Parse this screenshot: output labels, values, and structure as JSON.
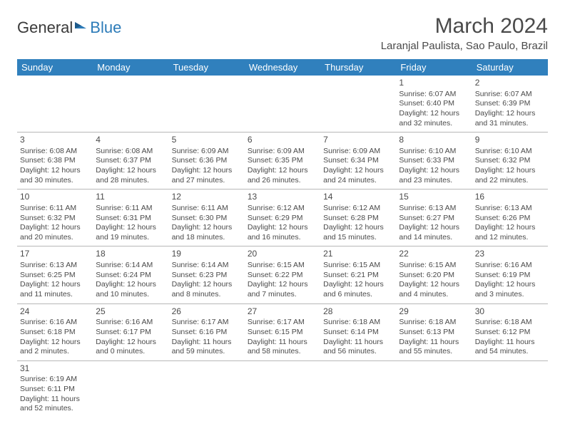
{
  "logo": {
    "text1": "General",
    "text2": "Blue"
  },
  "header": {
    "month_title": "March 2024",
    "location": "Laranjal Paulista, Sao Paulo, Brazil"
  },
  "colors": {
    "header_bg": "#3080bd",
    "header_text": "#ffffff",
    "body_text": "#4a4a4a",
    "border": "#b8b8b8"
  },
  "day_headers": [
    "Sunday",
    "Monday",
    "Tuesday",
    "Wednesday",
    "Thursday",
    "Friday",
    "Saturday"
  ],
  "weeks": [
    [
      null,
      null,
      null,
      null,
      null,
      {
        "d": "1",
        "sr": "Sunrise: 6:07 AM",
        "ss": "Sunset: 6:40 PM",
        "dl1": "Daylight: 12 hours",
        "dl2": "and 32 minutes."
      },
      {
        "d": "2",
        "sr": "Sunrise: 6:07 AM",
        "ss": "Sunset: 6:39 PM",
        "dl1": "Daylight: 12 hours",
        "dl2": "and 31 minutes."
      }
    ],
    [
      {
        "d": "3",
        "sr": "Sunrise: 6:08 AM",
        "ss": "Sunset: 6:38 PM",
        "dl1": "Daylight: 12 hours",
        "dl2": "and 30 minutes."
      },
      {
        "d": "4",
        "sr": "Sunrise: 6:08 AM",
        "ss": "Sunset: 6:37 PM",
        "dl1": "Daylight: 12 hours",
        "dl2": "and 28 minutes."
      },
      {
        "d": "5",
        "sr": "Sunrise: 6:09 AM",
        "ss": "Sunset: 6:36 PM",
        "dl1": "Daylight: 12 hours",
        "dl2": "and 27 minutes."
      },
      {
        "d": "6",
        "sr": "Sunrise: 6:09 AM",
        "ss": "Sunset: 6:35 PM",
        "dl1": "Daylight: 12 hours",
        "dl2": "and 26 minutes."
      },
      {
        "d": "7",
        "sr": "Sunrise: 6:09 AM",
        "ss": "Sunset: 6:34 PM",
        "dl1": "Daylight: 12 hours",
        "dl2": "and 24 minutes."
      },
      {
        "d": "8",
        "sr": "Sunrise: 6:10 AM",
        "ss": "Sunset: 6:33 PM",
        "dl1": "Daylight: 12 hours",
        "dl2": "and 23 minutes."
      },
      {
        "d": "9",
        "sr": "Sunrise: 6:10 AM",
        "ss": "Sunset: 6:32 PM",
        "dl1": "Daylight: 12 hours",
        "dl2": "and 22 minutes."
      }
    ],
    [
      {
        "d": "10",
        "sr": "Sunrise: 6:11 AM",
        "ss": "Sunset: 6:32 PM",
        "dl1": "Daylight: 12 hours",
        "dl2": "and 20 minutes."
      },
      {
        "d": "11",
        "sr": "Sunrise: 6:11 AM",
        "ss": "Sunset: 6:31 PM",
        "dl1": "Daylight: 12 hours",
        "dl2": "and 19 minutes."
      },
      {
        "d": "12",
        "sr": "Sunrise: 6:11 AM",
        "ss": "Sunset: 6:30 PM",
        "dl1": "Daylight: 12 hours",
        "dl2": "and 18 minutes."
      },
      {
        "d": "13",
        "sr": "Sunrise: 6:12 AM",
        "ss": "Sunset: 6:29 PM",
        "dl1": "Daylight: 12 hours",
        "dl2": "and 16 minutes."
      },
      {
        "d": "14",
        "sr": "Sunrise: 6:12 AM",
        "ss": "Sunset: 6:28 PM",
        "dl1": "Daylight: 12 hours",
        "dl2": "and 15 minutes."
      },
      {
        "d": "15",
        "sr": "Sunrise: 6:13 AM",
        "ss": "Sunset: 6:27 PM",
        "dl1": "Daylight: 12 hours",
        "dl2": "and 14 minutes."
      },
      {
        "d": "16",
        "sr": "Sunrise: 6:13 AM",
        "ss": "Sunset: 6:26 PM",
        "dl1": "Daylight: 12 hours",
        "dl2": "and 12 minutes."
      }
    ],
    [
      {
        "d": "17",
        "sr": "Sunrise: 6:13 AM",
        "ss": "Sunset: 6:25 PM",
        "dl1": "Daylight: 12 hours",
        "dl2": "and 11 minutes."
      },
      {
        "d": "18",
        "sr": "Sunrise: 6:14 AM",
        "ss": "Sunset: 6:24 PM",
        "dl1": "Daylight: 12 hours",
        "dl2": "and 10 minutes."
      },
      {
        "d": "19",
        "sr": "Sunrise: 6:14 AM",
        "ss": "Sunset: 6:23 PM",
        "dl1": "Daylight: 12 hours",
        "dl2": "and 8 minutes."
      },
      {
        "d": "20",
        "sr": "Sunrise: 6:15 AM",
        "ss": "Sunset: 6:22 PM",
        "dl1": "Daylight: 12 hours",
        "dl2": "and 7 minutes."
      },
      {
        "d": "21",
        "sr": "Sunrise: 6:15 AM",
        "ss": "Sunset: 6:21 PM",
        "dl1": "Daylight: 12 hours",
        "dl2": "and 6 minutes."
      },
      {
        "d": "22",
        "sr": "Sunrise: 6:15 AM",
        "ss": "Sunset: 6:20 PM",
        "dl1": "Daylight: 12 hours",
        "dl2": "and 4 minutes."
      },
      {
        "d": "23",
        "sr": "Sunrise: 6:16 AM",
        "ss": "Sunset: 6:19 PM",
        "dl1": "Daylight: 12 hours",
        "dl2": "and 3 minutes."
      }
    ],
    [
      {
        "d": "24",
        "sr": "Sunrise: 6:16 AM",
        "ss": "Sunset: 6:18 PM",
        "dl1": "Daylight: 12 hours",
        "dl2": "and 2 minutes."
      },
      {
        "d": "25",
        "sr": "Sunrise: 6:16 AM",
        "ss": "Sunset: 6:17 PM",
        "dl1": "Daylight: 12 hours",
        "dl2": "and 0 minutes."
      },
      {
        "d": "26",
        "sr": "Sunrise: 6:17 AM",
        "ss": "Sunset: 6:16 PM",
        "dl1": "Daylight: 11 hours",
        "dl2": "and 59 minutes."
      },
      {
        "d": "27",
        "sr": "Sunrise: 6:17 AM",
        "ss": "Sunset: 6:15 PM",
        "dl1": "Daylight: 11 hours",
        "dl2": "and 58 minutes."
      },
      {
        "d": "28",
        "sr": "Sunrise: 6:18 AM",
        "ss": "Sunset: 6:14 PM",
        "dl1": "Daylight: 11 hours",
        "dl2": "and 56 minutes."
      },
      {
        "d": "29",
        "sr": "Sunrise: 6:18 AM",
        "ss": "Sunset: 6:13 PM",
        "dl1": "Daylight: 11 hours",
        "dl2": "and 55 minutes."
      },
      {
        "d": "30",
        "sr": "Sunrise: 6:18 AM",
        "ss": "Sunset: 6:12 PM",
        "dl1": "Daylight: 11 hours",
        "dl2": "and 54 minutes."
      }
    ],
    [
      {
        "d": "31",
        "sr": "Sunrise: 6:19 AM",
        "ss": "Sunset: 6:11 PM",
        "dl1": "Daylight: 11 hours",
        "dl2": "and 52 minutes."
      },
      null,
      null,
      null,
      null,
      null,
      null
    ]
  ]
}
